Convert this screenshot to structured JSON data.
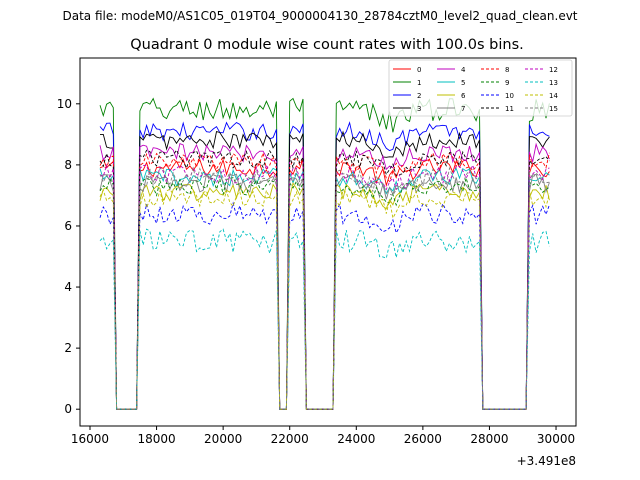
{
  "suptitle": "Data file: modeM0/AS1C05_019T04_9000004130_28784cztM0_level2_quad_clean.evt",
  "chart_data": {
    "type": "line",
    "title": "Quadrant 0 module wise count rates with 100.0s bins.",
    "xlabel": "",
    "ylabel": "",
    "x_offset_label": "+3.491e8",
    "xlim": [
      15700,
      30600
    ],
    "ylim": [
      -0.55,
      11.5
    ],
    "xticks": [
      16000,
      18000,
      20000,
      22000,
      24000,
      26000,
      28000,
      30000
    ],
    "yticks": [
      0,
      2,
      4,
      6,
      8,
      10
    ],
    "segments": [
      [
        16300,
        16700
      ],
      [
        17500,
        21600
      ],
      [
        21950,
        22450
      ],
      [
        23350,
        27750
      ],
      [
        29150,
        29850
      ]
    ],
    "gaps": [
      [
        16800,
        17400
      ],
      [
        21700,
        21900
      ],
      [
        22550,
        23250
      ],
      [
        27850,
        29050
      ]
    ],
    "legend_position": "top-right",
    "series": [
      {
        "name": "0",
        "level": 7.9,
        "noise": 0.3,
        "color": "#ff0000",
        "dash": "solid"
      },
      {
        "name": "1",
        "level": 9.8,
        "noise": 0.4,
        "color": "#008000",
        "dash": "solid"
      },
      {
        "name": "2",
        "level": 9.1,
        "noise": 0.3,
        "color": "#0000ff",
        "dash": "solid"
      },
      {
        "name": "3",
        "level": 8.8,
        "noise": 0.3,
        "color": "#000000",
        "dash": "solid"
      },
      {
        "name": "4",
        "level": 8.4,
        "noise": 0.3,
        "color": "#bf00bf",
        "dash": "solid"
      },
      {
        "name": "5",
        "level": 7.6,
        "noise": 0.3,
        "color": "#00bfbf",
        "dash": "solid"
      },
      {
        "name": "6",
        "level": 7.1,
        "noise": 0.3,
        "color": "#bfbf00",
        "dash": "solid"
      },
      {
        "name": "7",
        "level": 7.4,
        "noise": 0.3,
        "color": "#808080",
        "dash": "solid"
      },
      {
        "name": "8",
        "level": 8.1,
        "noise": 0.3,
        "color": "#ff0000",
        "dash": "dashed"
      },
      {
        "name": "9",
        "level": 7.3,
        "noise": 0.3,
        "color": "#008000",
        "dash": "dashed"
      },
      {
        "name": "10",
        "level": 6.4,
        "noise": 0.35,
        "color": "#0000ff",
        "dash": "dashed"
      },
      {
        "name": "11",
        "level": 8.2,
        "noise": 0.3,
        "color": "#000000",
        "dash": "dashed"
      },
      {
        "name": "12",
        "level": 7.7,
        "noise": 0.3,
        "color": "#bf00bf",
        "dash": "dashed"
      },
      {
        "name": "13",
        "level": 5.5,
        "noise": 0.4,
        "color": "#00bfbf",
        "dash": "dashed"
      },
      {
        "name": "14",
        "level": 6.9,
        "noise": 0.3,
        "color": "#bfbf00",
        "dash": "dashed"
      },
      {
        "name": "15",
        "level": 7.6,
        "noise": 0.3,
        "color": "#808080",
        "dash": "dashed"
      }
    ]
  }
}
